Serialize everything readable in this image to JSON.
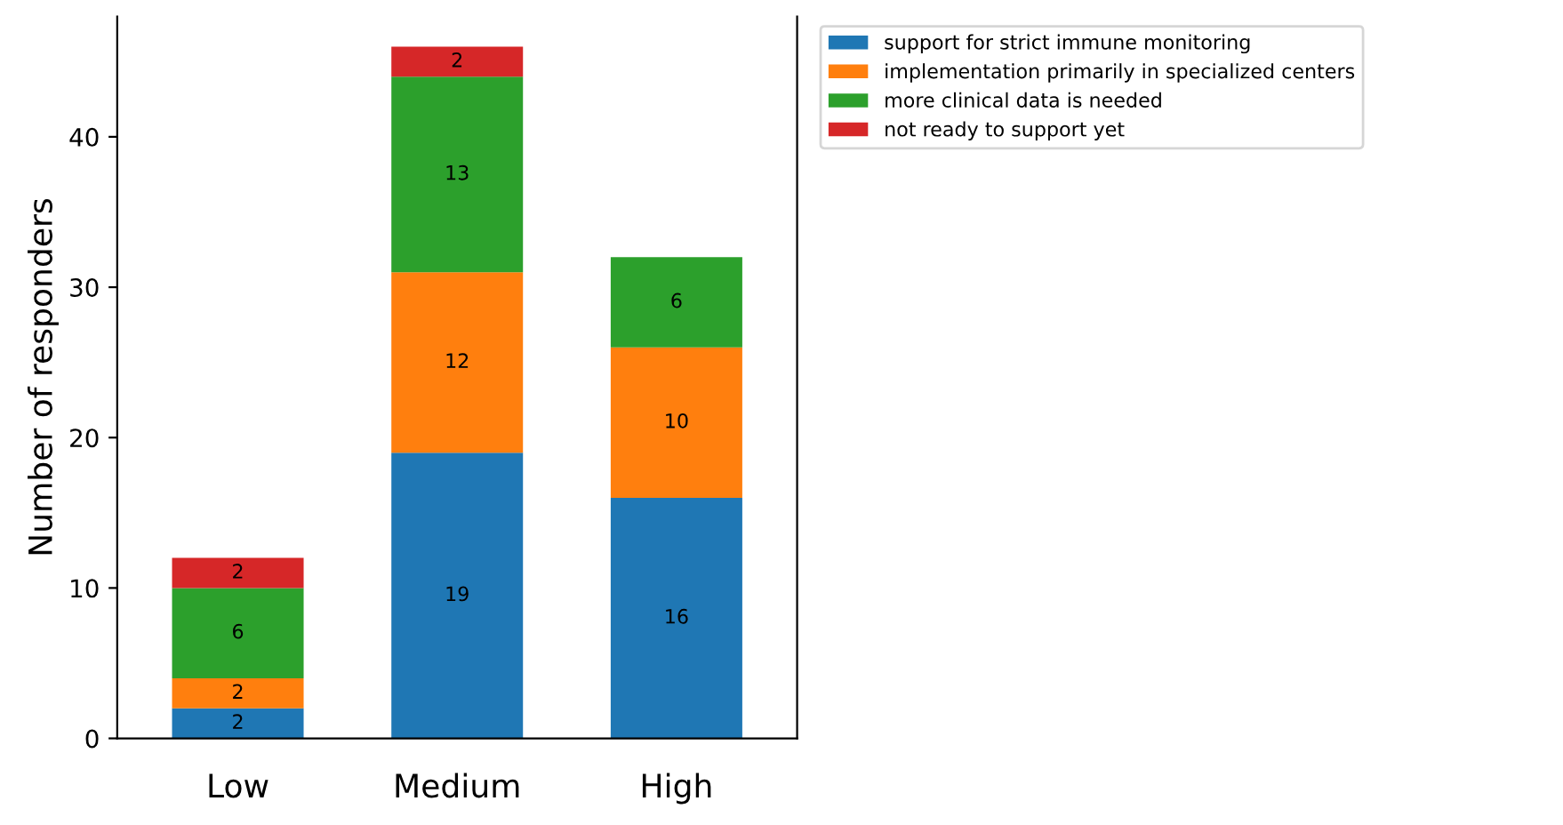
{
  "chart_data": {
    "type": "bar",
    "stacked": true,
    "ylabel": "Number of responders",
    "categories": [
      "Low",
      "Medium",
      "High"
    ],
    "series": [
      {
        "name": "support for strict immune monitoring",
        "color": "#1f77b4",
        "values": [
          2,
          19,
          16
        ]
      },
      {
        "name": "implementation primarily in specialized centers",
        "color": "#ff7f0e",
        "values": [
          2,
          12,
          10
        ]
      },
      {
        "name": "more clinical data is needed",
        "color": "#2ca02c",
        "values": [
          6,
          13,
          6
        ]
      },
      {
        "name": "not ready to support yet",
        "color": "#d62728",
        "values": [
          2,
          2,
          null
        ]
      }
    ],
    "ylim": [
      0,
      48
    ],
    "yticks": [
      0,
      10,
      20,
      30,
      40
    ],
    "data_labels": true,
    "legend": "top right",
    "grid": false
  }
}
